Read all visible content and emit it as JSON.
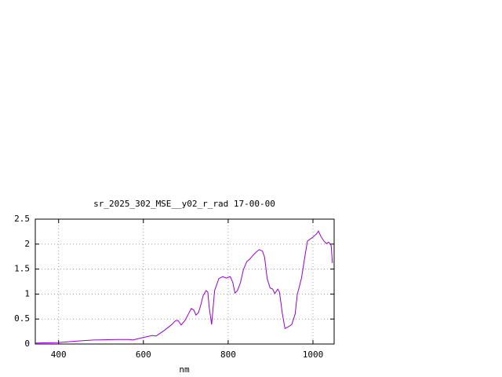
{
  "chart_data": {
    "type": "line",
    "title": "sr_2025_302_MSE__y02_r_rad 17-00-00",
    "x_label": "nm",
    "x": [
      345,
      400,
      446,
      483,
      538,
      566,
      575,
      599,
      621,
      630,
      649,
      667,
      676,
      682,
      689,
      698,
      708,
      713,
      719,
      724,
      730,
      735,
      741,
      748,
      752,
      755,
      761,
      768,
      778,
      787,
      796,
      805,
      811,
      816,
      822,
      829,
      836,
      844,
      851,
      859,
      866,
      873,
      881,
      886,
      892,
      899,
      905,
      910,
      917,
      921,
      928,
      934,
      943,
      950,
      958,
      963,
      973,
      980,
      987,
      995,
      1000,
      1008,
      1013,
      1019,
      1026,
      1032,
      1037,
      1043,
      1046
    ],
    "series": [
      {
        "color": "#9400d3",
        "values": [
          0.02,
          0.03,
          0.06,
          0.08,
          0.09,
          0.09,
          0.08,
          0.13,
          0.17,
          0.16,
          0.27,
          0.39,
          0.47,
          0.47,
          0.38,
          0.47,
          0.63,
          0.71,
          0.68,
          0.58,
          0.63,
          0.77,
          0.97,
          1.07,
          1.04,
          0.75,
          0.39,
          1.07,
          1.31,
          1.35,
          1.32,
          1.35,
          1.23,
          1.02,
          1.07,
          1.23,
          1.49,
          1.65,
          1.7,
          1.78,
          1.84,
          1.89,
          1.86,
          1.73,
          1.31,
          1.12,
          1.1,
          1.01,
          1.1,
          1.04,
          0.6,
          0.31,
          0.35,
          0.39,
          0.6,
          0.99,
          1.32,
          1.7,
          2.06,
          2.11,
          2.14,
          2.2,
          2.26,
          2.15,
          2.06,
          2.01,
          2.04,
          1.97,
          1.62
        ]
      }
    ],
    "xlim": [
      345,
      1050
    ],
    "xticks": [
      400,
      600,
      800,
      1000
    ],
    "ylim": [
      0,
      2.5
    ],
    "yticks": [
      0,
      0.5,
      1,
      1.5,
      2,
      2.5
    ],
    "grid": true
  }
}
